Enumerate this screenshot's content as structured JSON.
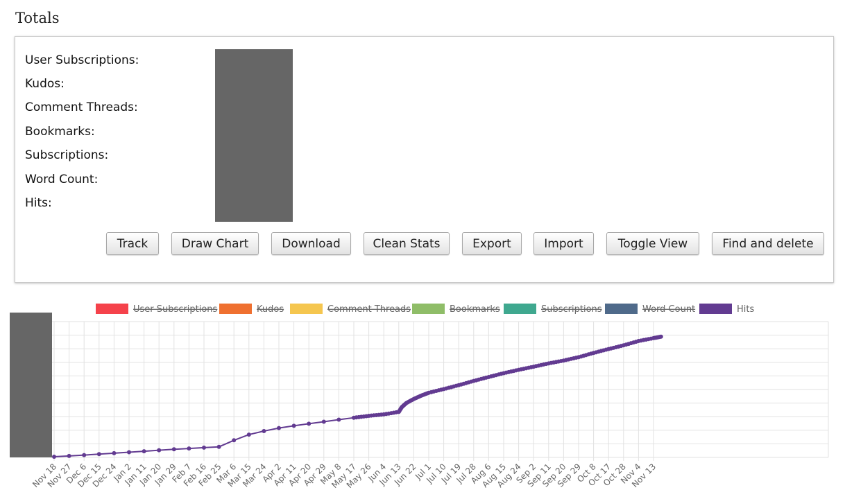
{
  "page": {
    "title": "Totals"
  },
  "stats": {
    "labels": [
      "User Subscriptions:",
      "Kudos:",
      "Comment Threads:",
      "Bookmarks:",
      "Subscriptions:",
      "Word Count:",
      "Hits:"
    ]
  },
  "toolbar": {
    "track": "Track",
    "draw_chart": "Draw Chart",
    "download": "Download",
    "clean_stats": "Clean Stats",
    "export": "Export",
    "import": "Import",
    "toggle_view": "Toggle View",
    "find_and_delete": "Find and delete"
  },
  "chart_data": {
    "type": "line",
    "legend_position": "top",
    "grid": true,
    "xlabel": "",
    "ylabel": "",
    "categories": [
      "Nov 18",
      "Nov 27",
      "Dec 6",
      "Dec 15",
      "Dec 24",
      "Jan 2",
      "Jan 11",
      "Jan 20",
      "Jan 29",
      "Feb 7",
      "Feb 16",
      "Feb 25",
      "Mar 6",
      "Mar 15",
      "Mar 24",
      "Apr 2",
      "Apr 11",
      "Apr 20",
      "Apr 29",
      "May 8",
      "May 17",
      "May 26",
      "Jun 4",
      "Jun 13",
      "Jun 22",
      "Jul 1",
      "Jul 10",
      "Jul 19",
      "Jul 28",
      "Aug 6",
      "Aug 15",
      "Aug 24",
      "Sep 2",
      "Sep 11",
      "Sep 20",
      "Sep 29",
      "Oct 8",
      "Oct 17",
      "Oct 28",
      "Nov 4",
      "Nov 13"
    ],
    "legend": [
      {
        "name": "User Subscriptions",
        "color": "#f5424b",
        "hidden": true
      },
      {
        "name": "Kudos",
        "color": "#ef7030",
        "hidden": true
      },
      {
        "name": "Comment Threads",
        "color": "#f5c64f",
        "hidden": true
      },
      {
        "name": "Bookmarks",
        "color": "#8fbd68",
        "hidden": true
      },
      {
        "name": "Subscriptions",
        "color": "#3fa88f",
        "hidden": true
      },
      {
        "name": "Word Count",
        "color": "#4f6a8a",
        "hidden": true
      },
      {
        "name": "Hits",
        "color": "#623b91",
        "hidden": false
      }
    ],
    "series": [
      {
        "name": "Hits",
        "color": "#623b91",
        "points": [
          [
            0,
            0.5
          ],
          [
            1,
            1.1
          ],
          [
            2,
            1.7
          ],
          [
            3,
            2.4
          ],
          [
            4,
            3.1
          ],
          [
            5,
            3.8
          ],
          [
            6,
            4.5
          ],
          [
            7,
            5.3
          ],
          [
            8,
            6.0
          ],
          [
            9,
            6.6
          ],
          [
            10,
            7.2
          ],
          [
            11,
            7.8
          ],
          [
            12,
            12.6
          ],
          [
            13,
            16.8
          ],
          [
            14,
            19.4
          ],
          [
            15,
            21.6
          ],
          [
            16,
            23.3
          ],
          [
            17,
            24.8
          ],
          [
            18,
            26.3
          ],
          [
            19,
            27.8
          ],
          [
            20,
            29.2
          ],
          [
            21,
            30.6
          ],
          [
            22,
            31.7
          ],
          [
            23,
            33.5
          ],
          [
            23.2,
            37
          ],
          [
            23.5,
            40
          ],
          [
            24,
            43
          ],
          [
            24.5,
            45.5
          ],
          [
            25,
            47.6
          ],
          [
            26,
            50.3
          ],
          [
            27,
            53.2
          ],
          [
            28,
            56.3
          ],
          [
            29,
            59.2
          ],
          [
            30,
            62.0
          ],
          [
            31,
            64.5
          ],
          [
            32,
            66.8
          ],
          [
            33,
            69.2
          ],
          [
            34,
            71.3
          ],
          [
            35,
            73.8
          ],
          [
            36,
            76.9
          ],
          [
            37,
            79.8
          ],
          [
            38,
            82.5
          ],
          [
            39,
            85.7
          ],
          [
            40,
            87.8
          ],
          [
            40.5,
            88.9
          ]
        ]
      }
    ]
  }
}
